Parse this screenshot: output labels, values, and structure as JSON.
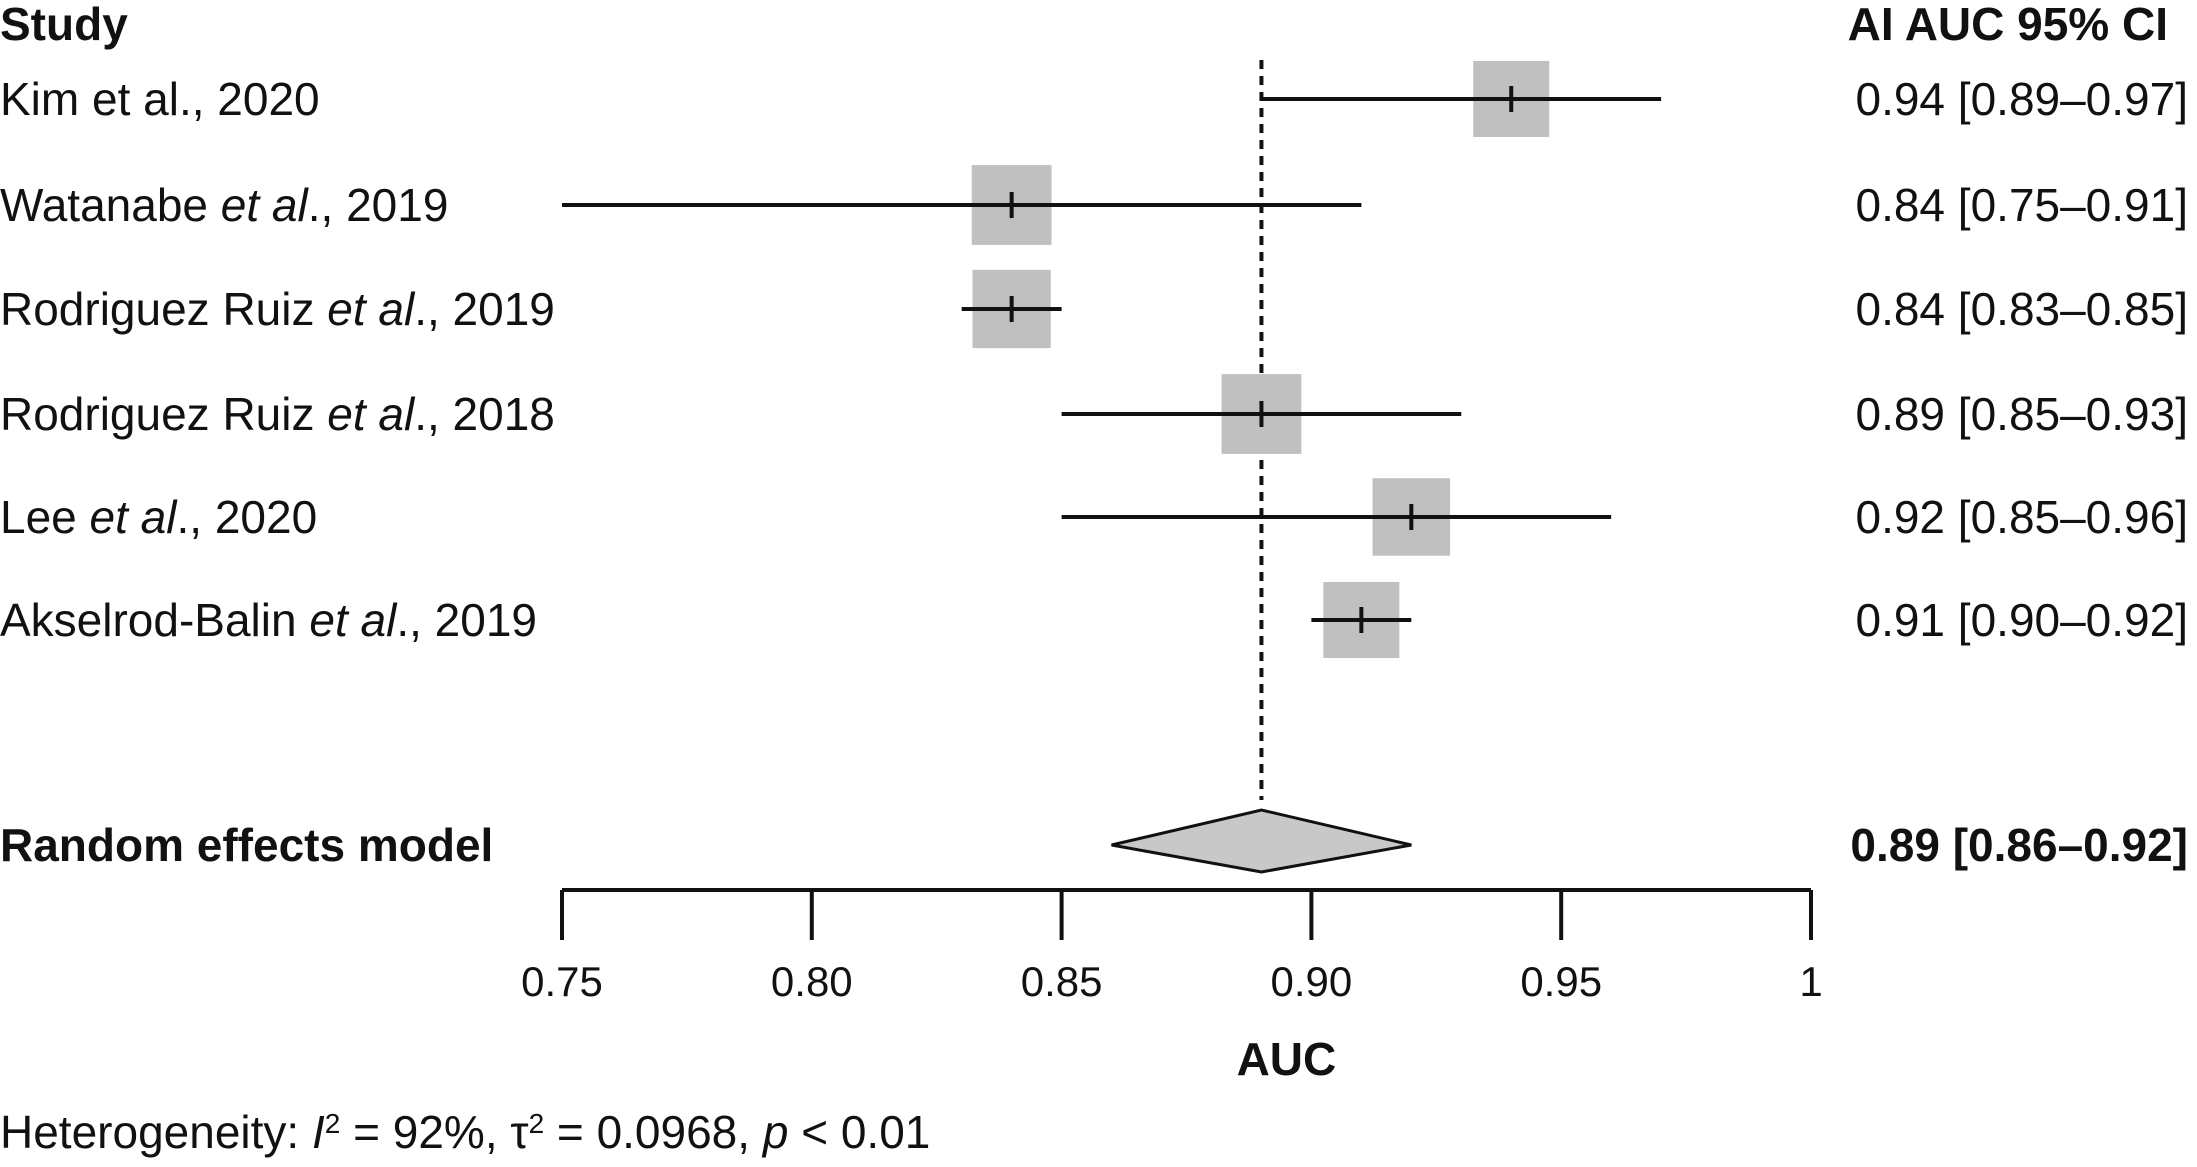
{
  "chart_data": {
    "type": "forest",
    "columns": {
      "study_header": "Study",
      "ci_header": "AI AUC 95% CI"
    },
    "studies": [
      {
        "label": "Kim et al., 2020",
        "label_parts": [
          {
            "t": "Kim et al., 2020",
            "i": false
          }
        ],
        "auc": 0.94,
        "lo": 0.89,
        "hi": 0.97,
        "ci_text": "0.94 [0.89–0.97]",
        "weight": 1.0
      },
      {
        "label": "Watanabe et al., 2019",
        "label_parts": [
          {
            "t": "Watanabe ",
            "i": false
          },
          {
            "t": "et al",
            "i": true
          },
          {
            "t": "., 2019",
            "i": false
          }
        ],
        "auc": 0.84,
        "lo": 0.75,
        "hi": 0.91,
        "ci_text": "0.84 [0.75–0.91]",
        "weight": 1.05
      },
      {
        "label": "Rodriguez Ruiz et al., 2019",
        "label_parts": [
          {
            "t": "Rodriguez Ruiz ",
            "i": false
          },
          {
            "t": "et al",
            "i": true
          },
          {
            "t": "., 2019",
            "i": false
          }
        ],
        "auc": 0.84,
        "lo": 0.83,
        "hi": 0.85,
        "ci_text": "0.84 [0.83–0.85]",
        "weight": 1.03
      },
      {
        "label": "Rodriguez Ruiz et al., 2018",
        "label_parts": [
          {
            "t": "Rodriguez Ruiz ",
            "i": false
          },
          {
            "t": "et al",
            "i": true
          },
          {
            "t": "., 2018",
            "i": false
          }
        ],
        "auc": 0.89,
        "lo": 0.85,
        "hi": 0.93,
        "ci_text": "0.89 [0.85–0.93]",
        "weight": 1.05
      },
      {
        "label": "Lee et al., 2020",
        "label_parts": [
          {
            "t": "Lee ",
            "i": false
          },
          {
            "t": "et al",
            "i": true
          },
          {
            "t": "., 2020",
            "i": false
          }
        ],
        "auc": 0.92,
        "lo": 0.85,
        "hi": 0.96,
        "ci_text": "0.92 [0.85–0.96]",
        "weight": 1.02
      },
      {
        "label": "Akselrod-Balin et al., 2019",
        "label_parts": [
          {
            "t": "Akselrod-Balin ",
            "i": false
          },
          {
            "t": "et al",
            "i": true
          },
          {
            "t": "., 2019",
            "i": false
          }
        ],
        "auc": 0.91,
        "lo": 0.9,
        "hi": 0.92,
        "ci_text": "0.91 [0.90–0.92]",
        "weight": 1.0
      }
    ],
    "summary": {
      "label": "Random effects model",
      "auc": 0.89,
      "lo": 0.86,
      "hi": 0.92,
      "ci_text": "0.89 [0.86–0.92]"
    },
    "reference_line": 0.89,
    "xlim": [
      0.75,
      1.0
    ],
    "ticks": [
      0.75,
      0.8,
      0.85,
      0.9,
      0.95,
      1.0
    ],
    "tick_labels": [
      "0.75",
      "0.80",
      "0.85",
      "0.90",
      "0.95",
      "1"
    ],
    "xlabel": "AUC",
    "heterogeneity": {
      "parts": [
        {
          "t": "Heterogeneity: ",
          "s": "normal"
        },
        {
          "t": "I",
          "s": "italic"
        },
        {
          "t": "2",
          "s": "sup"
        },
        {
          "t": " = 92%, τ",
          "s": "normal"
        },
        {
          "t": "2",
          "s": "sup"
        },
        {
          "t": " = 0.0968, ",
          "s": "normal"
        },
        {
          "t": "p",
          "s": "italic"
        },
        {
          "t": " < 0.01",
          "s": "normal"
        }
      ],
      "i2": "92%",
      "tau2": "0.0968",
      "p": "< 0.01"
    },
    "colors": {
      "box": "#c0c0c0",
      "diamond": "#c8c8c8",
      "line": "#111111"
    }
  }
}
